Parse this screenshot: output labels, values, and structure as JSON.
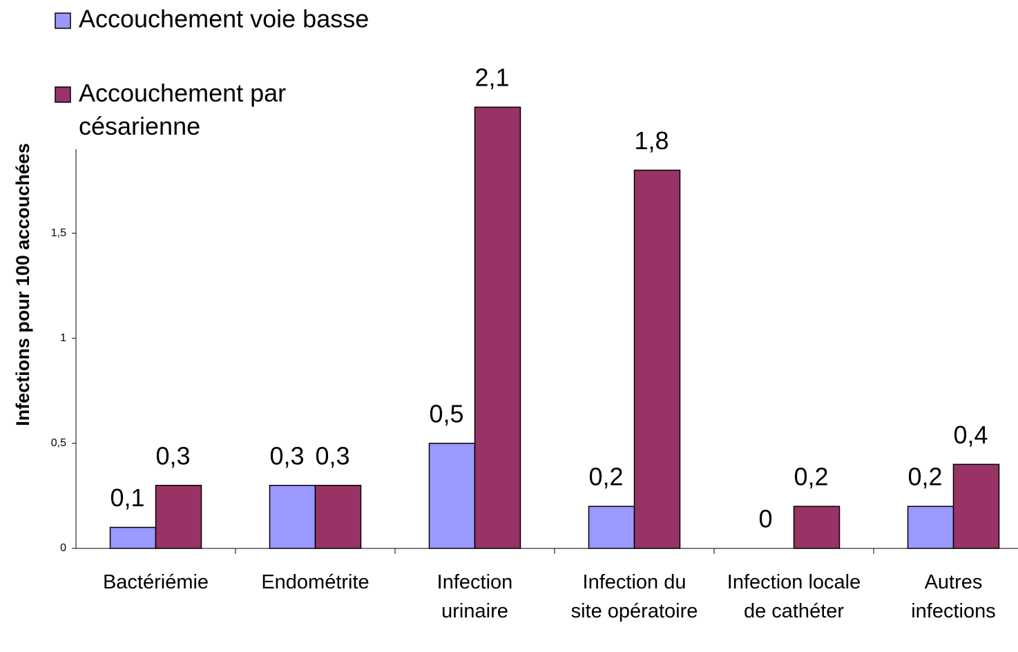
{
  "chart_data": {
    "type": "bar",
    "y_label": "Infections pour 100 accouchées",
    "categories": [
      "Bactériémie",
      "Endométrite",
      "Infection urinaire",
      "Infection du site opératoire",
      "Infection locale de cathéter",
      "Autres infections"
    ],
    "series": [
      {
        "name": "Accouchement voie basse",
        "color": "#9999ff",
        "values": [
          0.1,
          0.3,
          0.5,
          0.2,
          0,
          0.2
        ],
        "value_labels": [
          "0,1",
          "0,3",
          "0,5",
          "0,2",
          "0",
          "0,2"
        ]
      },
      {
        "name": "Accouchement par césarienne",
        "color": "#993366",
        "values": [
          0.3,
          0.3,
          2.1,
          1.8,
          0.2,
          0.4
        ],
        "value_labels": [
          "0,3",
          "0,3",
          "2,1",
          "1,8",
          "0,2",
          "0,4"
        ]
      }
    ],
    "ylim": [
      0,
      1.9
    ],
    "yticks": [
      0,
      {
        "value": 0.5,
        "label": "0,5"
      },
      1,
      {
        "value": 1.5,
        "label": "1,5"
      }
    ],
    "legend": "top-left"
  }
}
